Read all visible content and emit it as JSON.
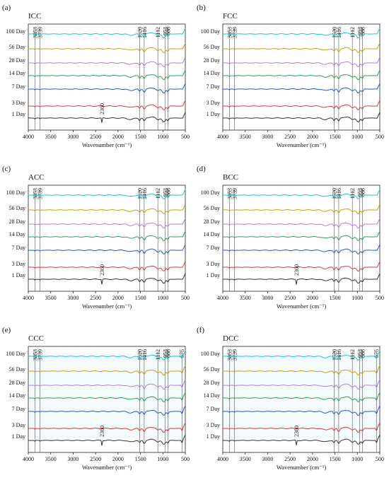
{
  "colors": {
    "100 Day": "#1fc8c8",
    "56 Day": "#c9a10a",
    "28 Day": "#b57be0",
    "14 Day": "#2e9e5b",
    "7 Day": "#2a57c9",
    "3 Day": "#d93a3a",
    "1 Day": "#333333"
  },
  "chart_data": [
    {
      "type": "line",
      "panel_label": "(a)",
      "title": "ICC",
      "xlabel": "Wavenumber (cm⁻¹)",
      "x_reversed": true,
      "xlim": [
        4000,
        500
      ],
      "x_ticks": [
        4000,
        3500,
        3000,
        2500,
        2000,
        1500,
        1000,
        500
      ],
      "series": [
        {
          "name": "100 Day"
        },
        {
          "name": "56 Day"
        },
        {
          "name": "28 Day"
        },
        {
          "name": "14 Day"
        },
        {
          "name": "7 Day"
        },
        {
          "name": "3 Day"
        },
        {
          "name": "1 Day"
        }
      ],
      "peak_lines": [
        3853,
        3739,
        1520,
        1416,
        1112,
        953,
        888
      ],
      "annotations": [
        {
          "text": "2360",
          "x": 2360
        }
      ]
    },
    {
      "type": "line",
      "panel_label": "(b)",
      "title": "FCC",
      "xlabel": "Wavenumber (cm⁻¹)",
      "x_reversed": true,
      "xlim": [
        4000,
        500
      ],
      "x_ticks": [
        4000,
        3500,
        3000,
        2500,
        2000,
        1500,
        1000,
        500
      ],
      "series": [
        {
          "name": "100 Day"
        },
        {
          "name": "56 Day"
        },
        {
          "name": "28 Day"
        },
        {
          "name": "14 Day"
        },
        {
          "name": "7 Day"
        },
        {
          "name": "3 Day"
        },
        {
          "name": "1 Day"
        }
      ],
      "peak_lines": [
        3853,
        3739,
        1520,
        1416,
        1112,
        953,
        888
      ],
      "annotations": []
    },
    {
      "type": "line",
      "panel_label": "(c)",
      "title": "ACC",
      "xlabel": "Wavenumber (cm⁻¹)",
      "x_reversed": true,
      "xlim": [
        4000,
        500
      ],
      "x_ticks": [
        4000,
        3500,
        3000,
        2500,
        2000,
        1500,
        1000,
        500
      ],
      "series": [
        {
          "name": "100 Day"
        },
        {
          "name": "56 Day"
        },
        {
          "name": "28 Day"
        },
        {
          "name": "14 Day"
        },
        {
          "name": "7 Day"
        },
        {
          "name": "3 Day"
        },
        {
          "name": "1 Day"
        }
      ],
      "peak_lines": [
        3853,
        3739,
        1520,
        1416,
        1112,
        953,
        888
      ],
      "annotations": [
        {
          "text": "2360",
          "x": 2360
        }
      ]
    },
    {
      "type": "line",
      "panel_label": "(d)",
      "title": "BCC",
      "xlabel": "Wavenumber (cm⁻¹)",
      "x_reversed": true,
      "xlim": [
        4000,
        500
      ],
      "x_ticks": [
        4000,
        3500,
        3000,
        2500,
        2000,
        1500,
        1000,
        500
      ],
      "series": [
        {
          "name": "100 Day"
        },
        {
          "name": "56 Day"
        },
        {
          "name": "28 Day"
        },
        {
          "name": "14 Day"
        },
        {
          "name": "7 Day"
        },
        {
          "name": "3 Day"
        },
        {
          "name": "1 Day"
        }
      ],
      "peak_lines": [
        3853,
        3739,
        1520,
        1416,
        1112,
        953,
        888
      ],
      "annotations": [
        {
          "text": "2360",
          "x": 2360
        }
      ]
    },
    {
      "type": "line",
      "panel_label": "(e)",
      "title": "CCC",
      "xlabel": "Wavenumber (cm⁻¹)",
      "x_reversed": true,
      "xlim": [
        4000,
        500
      ],
      "x_ticks": [
        4000,
        3500,
        3000,
        2500,
        2000,
        1500,
        1000,
        500
      ],
      "series": [
        {
          "name": "100 Day"
        },
        {
          "name": "56 Day"
        },
        {
          "name": "28 Day"
        },
        {
          "name": "14 Day"
        },
        {
          "name": "7 Day"
        },
        {
          "name": "3 Day"
        },
        {
          "name": "1 Day"
        }
      ],
      "peak_lines": [
        3853,
        3739,
        1520,
        1416,
        1112,
        953,
        888,
        575
      ],
      "annotations": [
        {
          "text": "2360",
          "x": 2360
        }
      ]
    },
    {
      "type": "line",
      "panel_label": "(f)",
      "title": "DCC",
      "xlabel": "Wavenumber (cm⁻¹)",
      "x_reversed": true,
      "xlim": [
        4000,
        500
      ],
      "x_ticks": [
        4000,
        3500,
        3000,
        2500,
        2000,
        1500,
        1000,
        500
      ],
      "series": [
        {
          "name": "100 Day"
        },
        {
          "name": "56 Day"
        },
        {
          "name": "28 Day"
        },
        {
          "name": "14 Day"
        },
        {
          "name": "7 Day"
        },
        {
          "name": "3 Day"
        },
        {
          "name": "1 Day"
        }
      ],
      "peak_lines": [
        3853,
        3739,
        1520,
        1416,
        1112,
        953,
        888,
        575
      ],
      "annotations": [
        {
          "text": "2360",
          "x": 2360
        }
      ]
    }
  ]
}
